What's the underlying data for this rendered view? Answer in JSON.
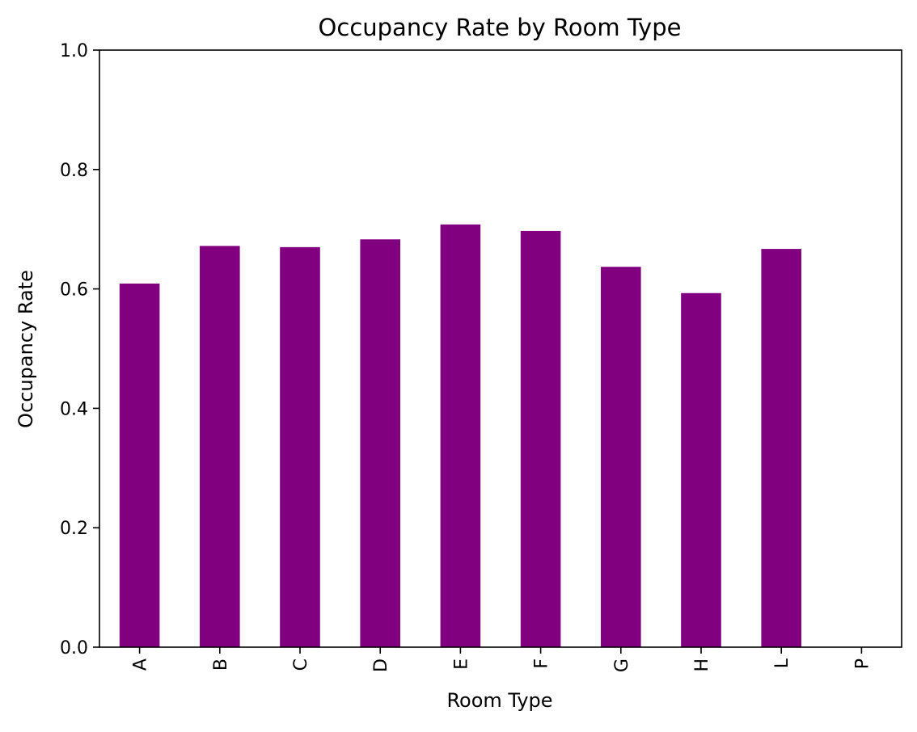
{
  "chart_data": {
    "type": "bar",
    "title": "Occupancy Rate by Room Type",
    "xlabel": "Room Type",
    "ylabel": "Occupancy Rate",
    "categories": [
      "A",
      "B",
      "C",
      "D",
      "E",
      "F",
      "G",
      "H",
      "L",
      "P"
    ],
    "values": [
      0.609,
      0.672,
      0.67,
      0.683,
      0.708,
      0.697,
      0.637,
      0.593,
      0.667,
      0.0
    ],
    "ylim": [
      0,
      1.0
    ],
    "yticks": [
      "0.0",
      "0.2",
      "0.4",
      "0.6",
      "0.8",
      "1.0"
    ],
    "bar_color": "#800080",
    "grid": false,
    "legend": "none"
  }
}
